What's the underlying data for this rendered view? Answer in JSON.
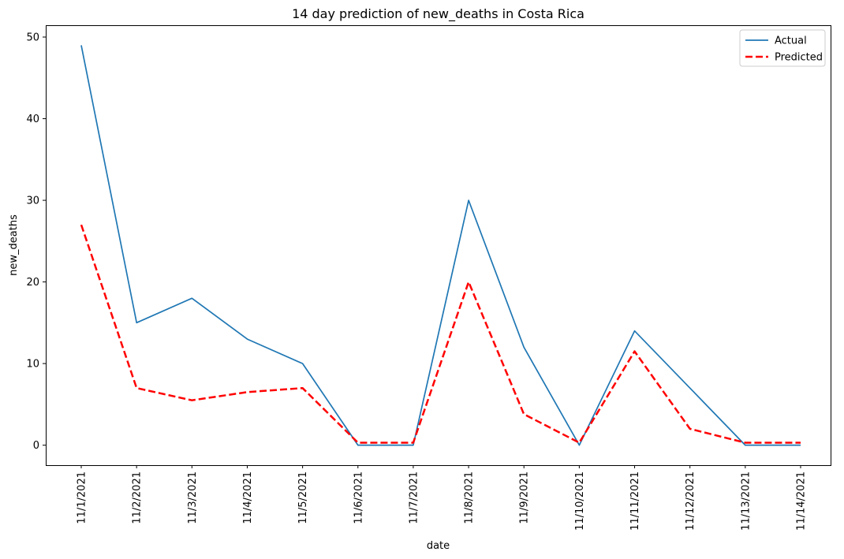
{
  "chart_data": {
    "type": "line",
    "title": "14 day prediction of new_deaths in Costa Rica",
    "xlabel": "date",
    "ylabel": "new_deaths",
    "categories": [
      "11/1/2021",
      "11/2/2021",
      "11/3/2021",
      "11/4/2021",
      "11/5/2021",
      "11/6/2021",
      "11/7/2021",
      "11/8/2021",
      "11/9/2021",
      "11/10/2021",
      "11/11/2021",
      "11/12/2021",
      "11/13/2021",
      "11/14/2021"
    ],
    "ylim": [
      -2.45,
      51.45
    ],
    "yticks": [
      0,
      10,
      20,
      30,
      40,
      50
    ],
    "grid": false,
    "legend_position": "top-right",
    "series": [
      {
        "name": "Actual",
        "color": "#1f77b4",
        "style": "solid",
        "values": [
          49,
          15,
          18,
          13,
          10,
          0,
          0,
          30,
          12,
          0,
          14,
          7,
          0,
          0
        ]
      },
      {
        "name": "Predicted",
        "color": "#ff0000",
        "style": "dashed",
        "values": [
          27,
          7,
          5.5,
          6.5,
          7,
          0.3,
          0.3,
          20,
          3.8,
          0.3,
          11.5,
          2,
          0.3,
          0.3
        ]
      }
    ]
  }
}
